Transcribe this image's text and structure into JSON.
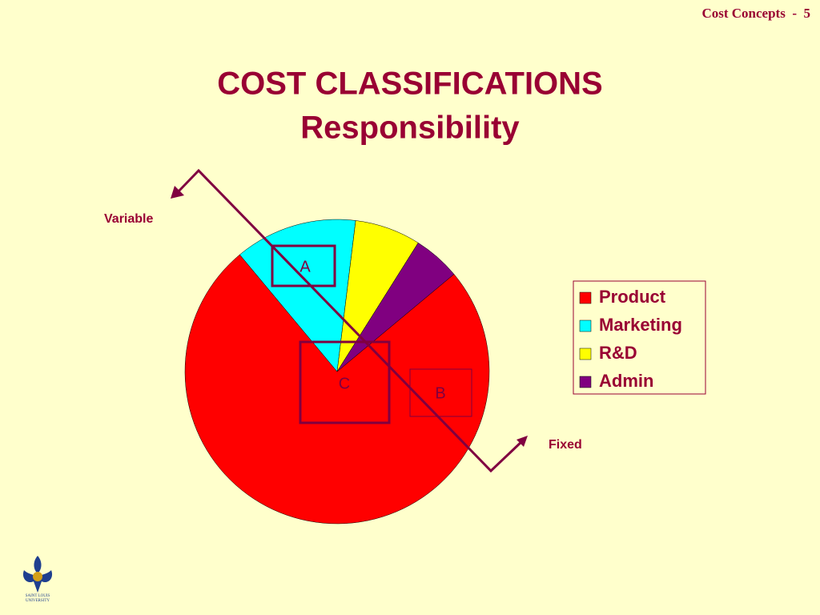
{
  "header": "Cost Concepts  -  5",
  "logo": {
    "lines": [
      "SAINT LOUIS",
      "UNIVERSITY"
    ]
  },
  "chart_data": {
    "type": "pie",
    "title": "COST CLASSIFICATIONS",
    "subtitle": "Responsibility",
    "categories": [
      "Product",
      "Marketing",
      "R&D",
      "Admin"
    ],
    "values": [
      75,
      13,
      7,
      5
    ],
    "colors": [
      "#ff0000",
      "#00ffff",
      "#ffff00",
      "#800080"
    ],
    "legend": "right",
    "annotations": [
      "Variable",
      "Fixed",
      "A",
      "B",
      "C"
    ]
  }
}
